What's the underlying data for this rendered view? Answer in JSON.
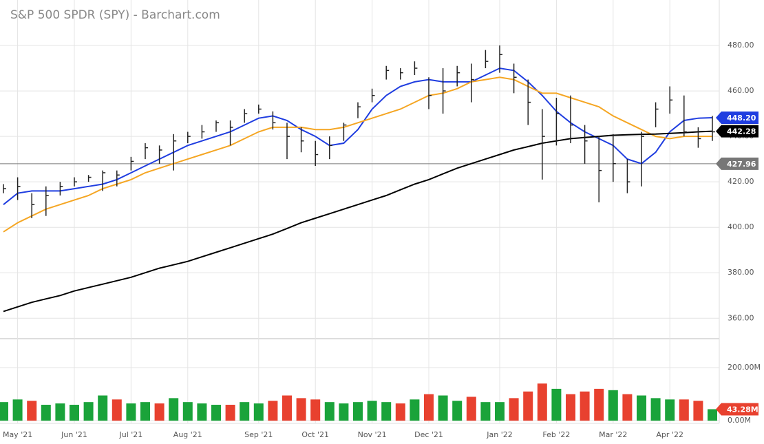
{
  "chart_data": {
    "type": "ohlc",
    "title": "S&P 500 SPDR (SPY) - Barchart.com",
    "categories": [
      null,
      "May '21",
      null,
      null,
      null,
      "Jun '21",
      null,
      null,
      null,
      "Jul '21",
      null,
      null,
      null,
      "Aug '21",
      null,
      null,
      null,
      null,
      "Sep '21",
      null,
      null,
      null,
      "Oct '21",
      null,
      null,
      null,
      "Nov '21",
      null,
      null,
      null,
      "Dec '21",
      null,
      null,
      null,
      null,
      "Jan '22",
      null,
      null,
      null,
      "Feb '22",
      null,
      null,
      null,
      "Mar '22",
      null,
      null,
      null,
      "Apr '22",
      null,
      null,
      null
    ],
    "price": {
      "color": "#222222",
      "high": [
        419,
        422,
        415,
        418,
        420,
        422,
        423,
        425,
        425,
        431,
        437,
        436,
        441,
        442,
        445,
        447,
        447,
        452,
        454,
        451,
        446,
        444,
        438,
        440,
        446,
        455,
        461,
        471,
        470,
        473,
        466,
        470,
        471,
        472,
        478,
        480,
        472,
        465,
        452,
        457,
        458,
        445,
        440,
        441,
        430,
        442,
        455,
        462,
        458,
        444,
        449
      ],
      "low": [
        415,
        412,
        404,
        405,
        414,
        418,
        420,
        416,
        418,
        425,
        430,
        428,
        425,
        437,
        439,
        442,
        436,
        446,
        450,
        443,
        430,
        433,
        427,
        430,
        438,
        448,
        455,
        465,
        465,
        467,
        452,
        450,
        462,
        455,
        470,
        468,
        459,
        445,
        421,
        436,
        437,
        428,
        411,
        420,
        415,
        418,
        444,
        450,
        440,
        435,
        438
      ],
      "close": [
        417,
        418,
        410,
        414,
        418,
        420,
        422,
        424,
        423,
        429,
        435,
        434,
        438,
        440,
        442,
        446,
        444,
        450,
        452,
        446,
        440,
        438,
        432,
        436,
        445,
        453,
        458,
        469,
        468,
        470,
        458,
        460,
        468,
        465,
        473,
        476,
        466,
        455,
        440,
        450,
        445,
        438,
        425,
        428,
        420,
        440,
        452,
        456,
        442,
        439,
        442
      ]
    },
    "moving_averages": [
      {
        "color": "#1f3de0",
        "values": [
          410,
          415,
          416,
          416,
          416,
          417,
          418,
          419,
          421,
          424,
          427,
          430,
          433,
          436,
          438,
          440,
          442,
          445,
          448,
          449,
          447,
          443,
          440,
          436,
          437,
          443,
          452,
          458,
          462,
          464,
          465,
          464,
          464,
          464,
          467,
          470,
          469,
          464,
          458,
          451,
          446,
          442,
          439,
          436,
          430,
          428,
          433,
          442,
          447,
          448,
          448.2
        ],
        "last_label": "448.20"
      },
      {
        "color": "#f5a623",
        "values": [
          398,
          402,
          405,
          408,
          410,
          412,
          414,
          417,
          419,
          421,
          424,
          426,
          428,
          430,
          432,
          434,
          436,
          439,
          442,
          444,
          444,
          444,
          443,
          443,
          444,
          446,
          448,
          450,
          452,
          455,
          458,
          459,
          461,
          464,
          465,
          466,
          465,
          462,
          459,
          459,
          457,
          455,
          453,
          449,
          446,
          443,
          440,
          439,
          440,
          440,
          440
        ]
      },
      {
        "color": "#000000",
        "values": [
          363,
          365,
          367,
          368.5,
          370,
          372,
          373.5,
          375,
          376.5,
          378,
          380,
          382,
          383.5,
          385,
          387,
          389,
          391,
          393,
          395,
          397,
          399.5,
          402,
          404,
          406,
          408,
          410,
          412,
          414,
          416.5,
          419,
          421,
          423.5,
          426,
          428,
          430,
          432,
          434,
          435.5,
          437,
          438,
          439,
          439.5,
          440,
          440.5,
          440.7,
          440.9,
          441,
          441.3,
          441.6,
          442,
          442.28
        ],
        "last_label": "442.28"
      }
    ],
    "reference_line": {
      "value": 427.96,
      "label": "427.96",
      "color": "#777777"
    },
    "ylim": [
      351,
      500
    ],
    "yticks": [
      {
        "value": 360,
        "label": "360.00"
      },
      {
        "value": 380,
        "label": "380.00"
      },
      {
        "value": 400,
        "label": "400.00"
      },
      {
        "value": 420,
        "label": "420.00"
      },
      {
        "value": 440,
        "label": "440.00"
      },
      {
        "value": 460,
        "label": "460.00"
      },
      {
        "value": 480,
        "label": "480.00"
      }
    ],
    "grid": true,
    "volume": {
      "values": [
        70,
        80,
        75,
        60,
        65,
        60,
        70,
        95,
        80,
        65,
        70,
        65,
        85,
        70,
        65,
        60,
        60,
        70,
        65,
        75,
        95,
        85,
        80,
        70,
        65,
        70,
        75,
        70,
        65,
        80,
        100,
        95,
        75,
        90,
        70,
        70,
        85,
        110,
        140,
        120,
        100,
        110,
        120,
        115,
        100,
        95,
        85,
        80,
        80,
        75,
        43.28
      ],
      "last_label": "43.28M",
      "up_color": "#1aa33a",
      "down_color": "#e8412f",
      "ylim": [
        -10,
        309
      ],
      "yticks": [
        {
          "value": 0,
          "label": "0.00M"
        },
        {
          "value": 200,
          "label": "200.00M"
        }
      ]
    }
  }
}
